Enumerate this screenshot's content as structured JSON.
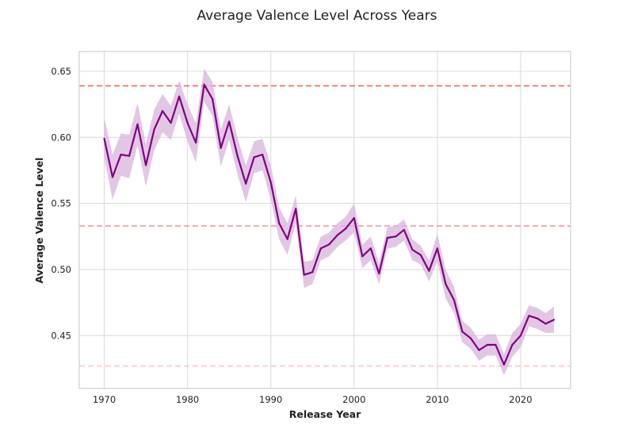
{
  "chart_data": {
    "type": "line",
    "title": "Average Valence Level Across Years",
    "xlabel": "Release Year",
    "ylabel": "Average Valence Level",
    "xlim": [
      1967,
      2026
    ],
    "ylim": [
      0.41,
      0.665
    ],
    "xticks": [
      1970,
      1980,
      1990,
      2000,
      2010,
      2020
    ],
    "xtick_labels": [
      "1970",
      "1980",
      "1990",
      "2000",
      "2010",
      "2020"
    ],
    "yticks": [
      0.45,
      0.5,
      0.55,
      0.6,
      0.65
    ],
    "ytick_labels": [
      "0.45",
      "0.50",
      "0.55",
      "0.60",
      "0.65"
    ],
    "grid": true,
    "series": [
      {
        "color": "#800080",
        "band_color": "#d8b4dc",
        "x": [
          1970,
          1971,
          1972,
          1973,
          1974,
          1975,
          1976,
          1977,
          1978,
          1979,
          1980,
          1981,
          1982,
          1983,
          1984,
          1985,
          1986,
          1987,
          1988,
          1989,
          1990,
          1991,
          1992,
          1993,
          1994,
          1995,
          1996,
          1997,
          1998,
          1999,
          2000,
          2001,
          2002,
          2003,
          2004,
          2005,
          2006,
          2007,
          2008,
          2009,
          2010,
          2011,
          2012,
          2013,
          2014,
          2015,
          2016,
          2017,
          2018,
          2019,
          2020,
          2021,
          2022,
          2023,
          2024
        ],
        "y": [
          0.599,
          0.57,
          0.587,
          0.586,
          0.61,
          0.579,
          0.606,
          0.62,
          0.611,
          0.631,
          0.611,
          0.596,
          0.64,
          0.629,
          0.592,
          0.612,
          0.586,
          0.565,
          0.585,
          0.587,
          0.566,
          0.535,
          0.523,
          0.546,
          0.496,
          0.498,
          0.516,
          0.519,
          0.526,
          0.531,
          0.539,
          0.51,
          0.516,
          0.497,
          0.524,
          0.525,
          0.53,
          0.515,
          0.511,
          0.499,
          0.516,
          0.489,
          0.477,
          0.453,
          0.448,
          0.439,
          0.443,
          0.443,
          0.428,
          0.443,
          0.45,
          0.465,
          0.463,
          0.459,
          0.462
        ],
        "lower": [
          0.584,
          0.553,
          0.571,
          0.569,
          0.594,
          0.563,
          0.59,
          0.604,
          0.598,
          0.618,
          0.597,
          0.581,
          0.627,
          0.616,
          0.578,
          0.598,
          0.572,
          0.551,
          0.573,
          0.575,
          0.553,
          0.523,
          0.511,
          0.535,
          0.486,
          0.489,
          0.507,
          0.51,
          0.517,
          0.522,
          0.528,
          0.501,
          0.507,
          0.489,
          0.516,
          0.517,
          0.522,
          0.507,
          0.504,
          0.491,
          0.506,
          0.478,
          0.467,
          0.445,
          0.44,
          0.431,
          0.435,
          0.435,
          0.42,
          0.434,
          0.441,
          0.457,
          0.455,
          0.452,
          0.452
        ],
        "upper": [
          0.615,
          0.587,
          0.603,
          0.602,
          0.626,
          0.595,
          0.621,
          0.633,
          0.624,
          0.643,
          0.625,
          0.611,
          0.652,
          0.642,
          0.606,
          0.625,
          0.6,
          0.579,
          0.597,
          0.599,
          0.579,
          0.547,
          0.535,
          0.556,
          0.506,
          0.507,
          0.525,
          0.528,
          0.535,
          0.54,
          0.55,
          0.519,
          0.525,
          0.505,
          0.532,
          0.533,
          0.538,
          0.523,
          0.518,
          0.507,
          0.527,
          0.5,
          0.487,
          0.461,
          0.456,
          0.447,
          0.451,
          0.451,
          0.436,
          0.452,
          0.459,
          0.473,
          0.471,
          0.467,
          0.472
        ]
      }
    ],
    "reference_lines": [
      {
        "y": 0.639,
        "color": "#ff5050",
        "opacity": 0.9
      },
      {
        "y": 0.533,
        "color": "#ff7080",
        "opacity": 0.8
      },
      {
        "y": 0.427,
        "color": "#ffb0b0",
        "opacity": 0.7
      }
    ]
  }
}
